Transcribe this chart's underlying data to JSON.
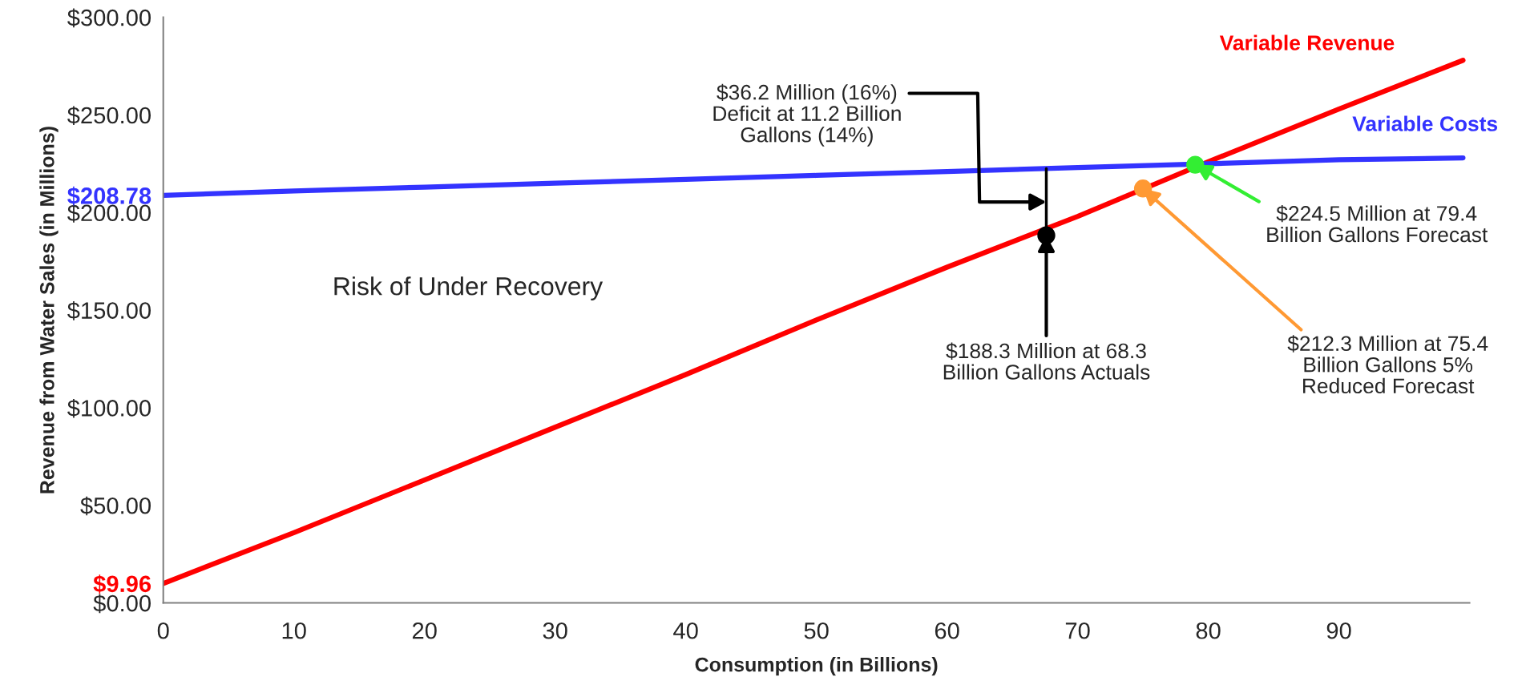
{
  "chart_data": {
    "type": "line",
    "xlabel": "Consumption (in Billions)",
    "ylabel": "Revenue from Water Sales (in Millions)",
    "x": [
      0,
      10,
      20,
      30,
      40,
      50,
      60,
      70,
      80,
      90,
      99.5
    ],
    "series": [
      {
        "name": "Variable Revenue",
        "color": "#ff0000",
        "values": [
          9.96,
          36,
          63,
          90,
          117,
          145,
          172,
          198,
          226,
          253,
          278
        ]
      },
      {
        "name": "Variable Costs",
        "color": "#3333ff",
        "values": [
          208.78,
          211,
          213,
          215,
          217,
          219,
          221,
          223,
          225,
          227,
          228
        ]
      },
      {
        "type": "line",
        "color": "#000000",
        "x": [
          67.6,
          67.6
        ],
        "values": [
          188.3,
          222.5
        ]
      },
      {
        "type": "scatter",
        "marker": "circle",
        "x": [
          67.6,
          75.0,
          79.0
        ],
        "values": [
          188.3,
          212.3,
          224.5
        ],
        "colors": [
          "#000000",
          "#ff9933",
          "#33ee33"
        ]
      }
    ],
    "xlim": [
      0,
      100
    ],
    "xticks": [
      0,
      10,
      20,
      30,
      40,
      50,
      60,
      70,
      80,
      90
    ],
    "ylim": [
      0,
      300
    ],
    "yticks": [
      {
        "value": 0,
        "label": "$0.00"
      },
      {
        "value": 9.96,
        "label": "$9.96"
      },
      {
        "value": 50,
        "label": "$50.00"
      },
      {
        "value": 100,
        "label": "$100.00"
      },
      {
        "value": 150,
        "label": "$150.00"
      },
      {
        "value": 200,
        "label": "$200.00"
      },
      {
        "value": 208.78,
        "label": "$208.78"
      },
      {
        "value": 250,
        "label": "$250.00"
      },
      {
        "value": 300,
        "label": "$300.00"
      }
    ],
    "annotations": [
      "Risk of Under Recovery",
      {
        "text": "$36.2 Million (16%)\nDeficit at 11.2 Billion\nGallons (14%)",
        "x": 67.6,
        "y": 205.4
      },
      {
        "text": "$188.3 Million at 68.3\nBillion Gallons Actuals",
        "x": 67.6,
        "y": 188.3
      },
      {
        "text": "$212.3 Million at 75.4\nBillion Gallons 5%\nReduced Forecast",
        "x": 75.0,
        "y": 212.3
      },
      {
        "text": "$224.5 Million at 79.4\nBillion Gallons Forecast",
        "x": 79.0,
        "y": 224.5
      }
    ],
    "grid": false,
    "legend": false,
    "line_style": "solid"
  }
}
